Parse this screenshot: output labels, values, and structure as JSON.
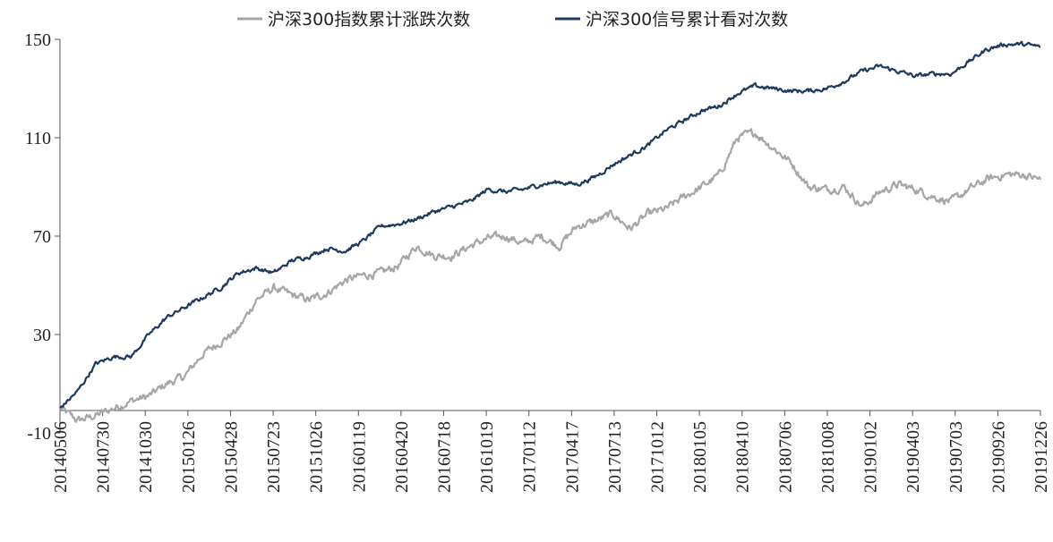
{
  "chart_data": {
    "type": "line",
    "ylim": [
      -10,
      150
    ],
    "y_ticks": [
      -10,
      30,
      70,
      110,
      150
    ],
    "y_tick_labels": [
      "-10",
      "30",
      "70",
      "110",
      "150"
    ],
    "x_tick_labels": [
      "20140506",
      "20140730",
      "20141030",
      "20150126",
      "20150428",
      "20150723",
      "20151026",
      "20160119",
      "20160420",
      "20160718",
      "20161019",
      "20170112",
      "20170417",
      "20170713",
      "20171012",
      "20180105",
      "20180410",
      "20180706",
      "20181008",
      "20190102",
      "20190403",
      "20190703",
      "20190926",
      "20191226"
    ],
    "grid": false,
    "legend_position": "top",
    "series": [
      {
        "name": "沪深300指数累计涨跌次数",
        "color": "#a6a6a6",
        "values": [
          0,
          -5,
          -3,
          0,
          3,
          5,
          10,
          13,
          22,
          27,
          32,
          44,
          49,
          46,
          44,
          47,
          52,
          54,
          55,
          58,
          66,
          62,
          62,
          66,
          69,
          70,
          67,
          70,
          66,
          74,
          76,
          79,
          73,
          79,
          81,
          86,
          90,
          95,
          110,
          112,
          106,
          100,
          90,
          89,
          90,
          82,
          88,
          91,
          89,
          86,
          84,
          89,
          93,
          95,
          95,
          93
        ]
      },
      {
        "name": "沪深300信号累计看对次数",
        "color": "#1f3a5f",
        "values": [
          0,
          7,
          18,
          21,
          21,
          30,
          37,
          41,
          45,
          49,
          55,
          57,
          55,
          60,
          62,
          65,
          64,
          68,
          74,
          75,
          77,
          80,
          82,
          84,
          89,
          88,
          89,
          91,
          92,
          91,
          94,
          99,
          103,
          107,
          113,
          117,
          121,
          123,
          128,
          131,
          130,
          129,
          129,
          130,
          133,
          137,
          139,
          137,
          135,
          136,
          136,
          141,
          146,
          148,
          148,
          147
        ]
      }
    ]
  }
}
